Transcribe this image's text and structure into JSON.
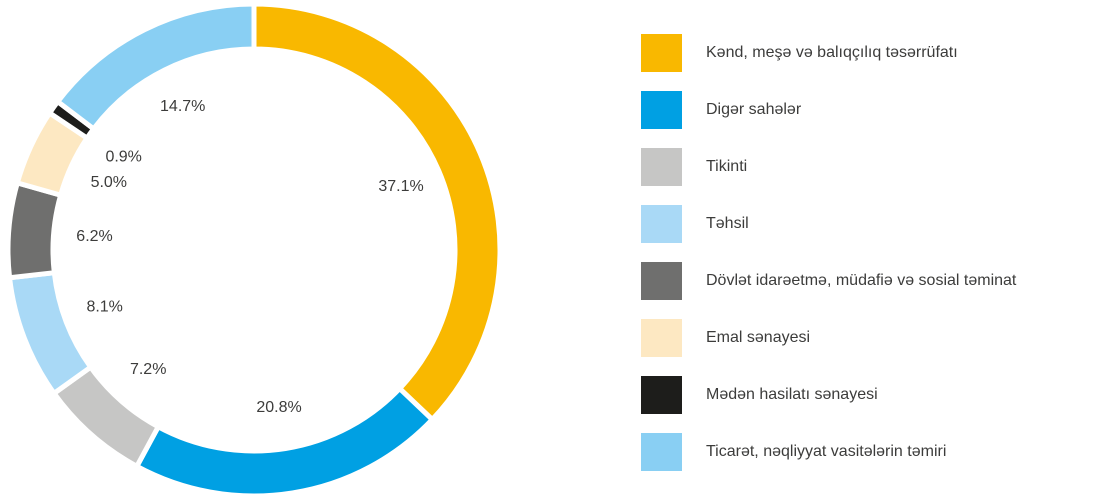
{
  "chart_data": {
    "type": "pie",
    "categories": [
      "Kənd, meşə və balıqçılıq təsərrüfatı",
      "Digər sahələr",
      "Tikinti",
      "Təhsil",
      "Dövlət idarəetmə, müdafiə və sosial təminat",
      "Emal sənayesi",
      "Mədən hasilatı sənayesi",
      "Ticarət, nəqliyyat vasitələrin təmiri"
    ],
    "values": [
      37.1,
      20.8,
      7.2,
      8.1,
      6.2,
      5.0,
      0.9,
      14.7
    ],
    "value_labels": [
      "37.1%",
      "20.8%",
      "7.2%",
      "8.1%",
      "6.2%",
      "5.0%",
      "0.9%",
      "14.7%"
    ],
    "colors": [
      "#f9b800",
      "#00a0e3",
      "#c6c6c5",
      "#a9d9f6",
      "#6f6f6e",
      "#fde8c2",
      "#1d1d1b",
      "#89cff3"
    ],
    "legend": "right"
  }
}
